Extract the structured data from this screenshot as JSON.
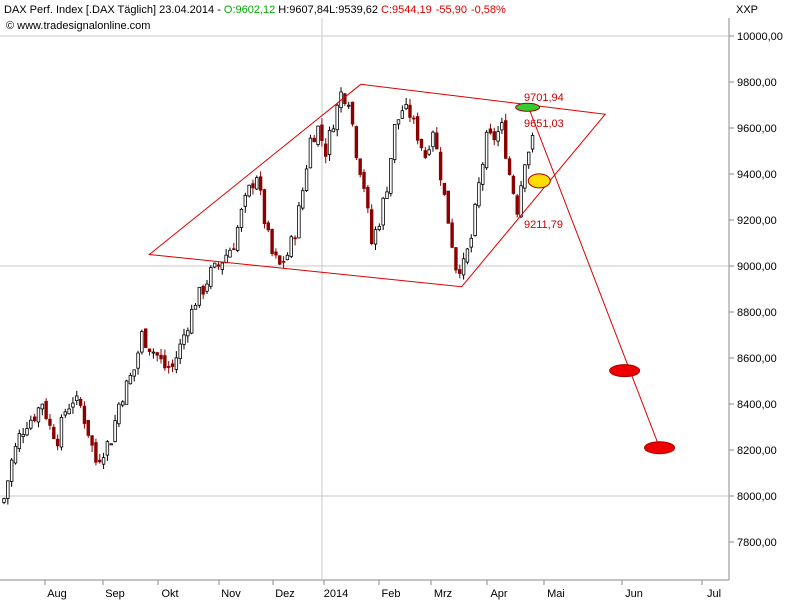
{
  "header": {
    "title": "DAX Perf. Index [.DAX  Täglich] 23.04.2014 - ",
    "open": "O:9602,12",
    "high": "H:9607,84",
    "low": "L:9539,62",
    "close": "C:9544,19",
    "change": "-55,90",
    "change_pct": "-0,58%",
    "copyright": "© www.tradesignalonline.com",
    "symbol": "XXP"
  },
  "colors": {
    "up": "#000000",
    "down": "#8b0000",
    "pattern": "#dd0000",
    "green_marker": "#33cc33",
    "yellow_marker": "#ffdd00",
    "red_marker": "#ee0000",
    "grid": "#c8c8c8",
    "open_color": "#00aa00",
    "close_color": "#dd0000"
  },
  "chart_data": {
    "type": "candlestick",
    "ylim": [
      7650,
      10050
    ],
    "y_ticks": [
      "7800,00",
      "8000,00",
      "8200,00",
      "8400,00",
      "8600,00",
      "8800,00",
      "9000,00",
      "9200,00",
      "9400,00",
      "9600,00",
      "9800,00",
      "10000,00"
    ],
    "x_labels": [
      "Aug",
      "Sep",
      "Okt",
      "Nov",
      "Dez",
      "2014",
      "Feb",
      "Mrz",
      "Apr",
      "Mai",
      "Jun",
      "Jul"
    ],
    "grid_y": [
      8000,
      9000,
      10000
    ],
    "grid_x_label": "2014",
    "close_path": [
      [
        0,
        7990
      ],
      [
        2,
        8150
      ],
      [
        4,
        8260
      ],
      [
        6,
        8320
      ],
      [
        8,
        8350
      ],
      [
        10,
        8410
      ],
      [
        12,
        8300
      ],
      [
        14,
        8250
      ],
      [
        16,
        8370
      ],
      [
        18,
        8420
      ],
      [
        20,
        8390
      ],
      [
        22,
        8280
      ],
      [
        24,
        8150
      ],
      [
        26,
        8200
      ],
      [
        28,
        8250
      ],
      [
        30,
        8400
      ],
      [
        32,
        8480
      ],
      [
        34,
        8550
      ],
      [
        36,
        8700
      ],
      [
        38,
        8650
      ],
      [
        40,
        8610
      ],
      [
        42,
        8560
      ],
      [
        44,
        8560
      ],
      [
        46,
        8650
      ],
      [
        48,
        8750
      ],
      [
        50,
        8850
      ],
      [
        52,
        8900
      ],
      [
        54,
        8970
      ],
      [
        56,
        9000
      ],
      [
        58,
        9050
      ],
      [
        60,
        9100
      ],
      [
        62,
        9230
      ],
      [
        64,
        9330
      ],
      [
        66,
        9400
      ],
      [
        68,
        9200
      ],
      [
        70,
        9050
      ],
      [
        72,
        9000
      ],
      [
        74,
        9050
      ],
      [
        76,
        9150
      ],
      [
        78,
        9330
      ],
      [
        80,
        9550
      ],
      [
        82,
        9600
      ],
      [
        84,
        9500
      ],
      [
        86,
        9630
      ],
      [
        88,
        9750
      ],
      [
        90,
        9730
      ],
      [
        92,
        9500
      ],
      [
        94,
        9350
      ],
      [
        96,
        9100
      ],
      [
        98,
        9200
      ],
      [
        100,
        9350
      ],
      [
        102,
        9600
      ],
      [
        104,
        9680
      ],
      [
        106,
        9660
      ],
      [
        108,
        9570
      ],
      [
        110,
        9480
      ],
      [
        112,
        9600
      ],
      [
        114,
        9400
      ],
      [
        116,
        9200
      ],
      [
        118,
        9000
      ],
      [
        120,
        9000
      ],
      [
        122,
        9120
      ],
      [
        124,
        9350
      ],
      [
        126,
        9550
      ],
      [
        128,
        9560
      ],
      [
        130,
        9600
      ],
      [
        132,
        9400
      ],
      [
        134,
        9250
      ],
      [
        136,
        9470
      ],
      [
        138,
        9544
      ]
    ],
    "annotations": [
      {
        "label": "9701,94",
        "value": 9701.94
      },
      {
        "label": "9651,03",
        "value": 9651.03
      },
      {
        "label": "9211,79",
        "value": 9211.79
      }
    ],
    "pattern": {
      "diamond": [
        [
          "2013-10-04",
          9050
        ],
        [
          "2014-01-21",
          9790
        ],
        [
          "2014-05-27",
          9660
        ],
        [
          "2014-03-14",
          8910
        ]
      ],
      "target_line": [
        [
          "2014-04-17",
          9700
        ],
        [
          "2014-06-24",
          8210
        ]
      ]
    },
    "markers": [
      {
        "color": "green",
        "date": "2014-04-17",
        "value": 9690
      },
      {
        "color": "yellow",
        "date": "2014-04-23",
        "value": 9370
      },
      {
        "color": "red",
        "date": "2014-06-06",
        "value": 8545
      },
      {
        "color": "red",
        "date": "2014-06-24",
        "value": 8210
      }
    ]
  }
}
